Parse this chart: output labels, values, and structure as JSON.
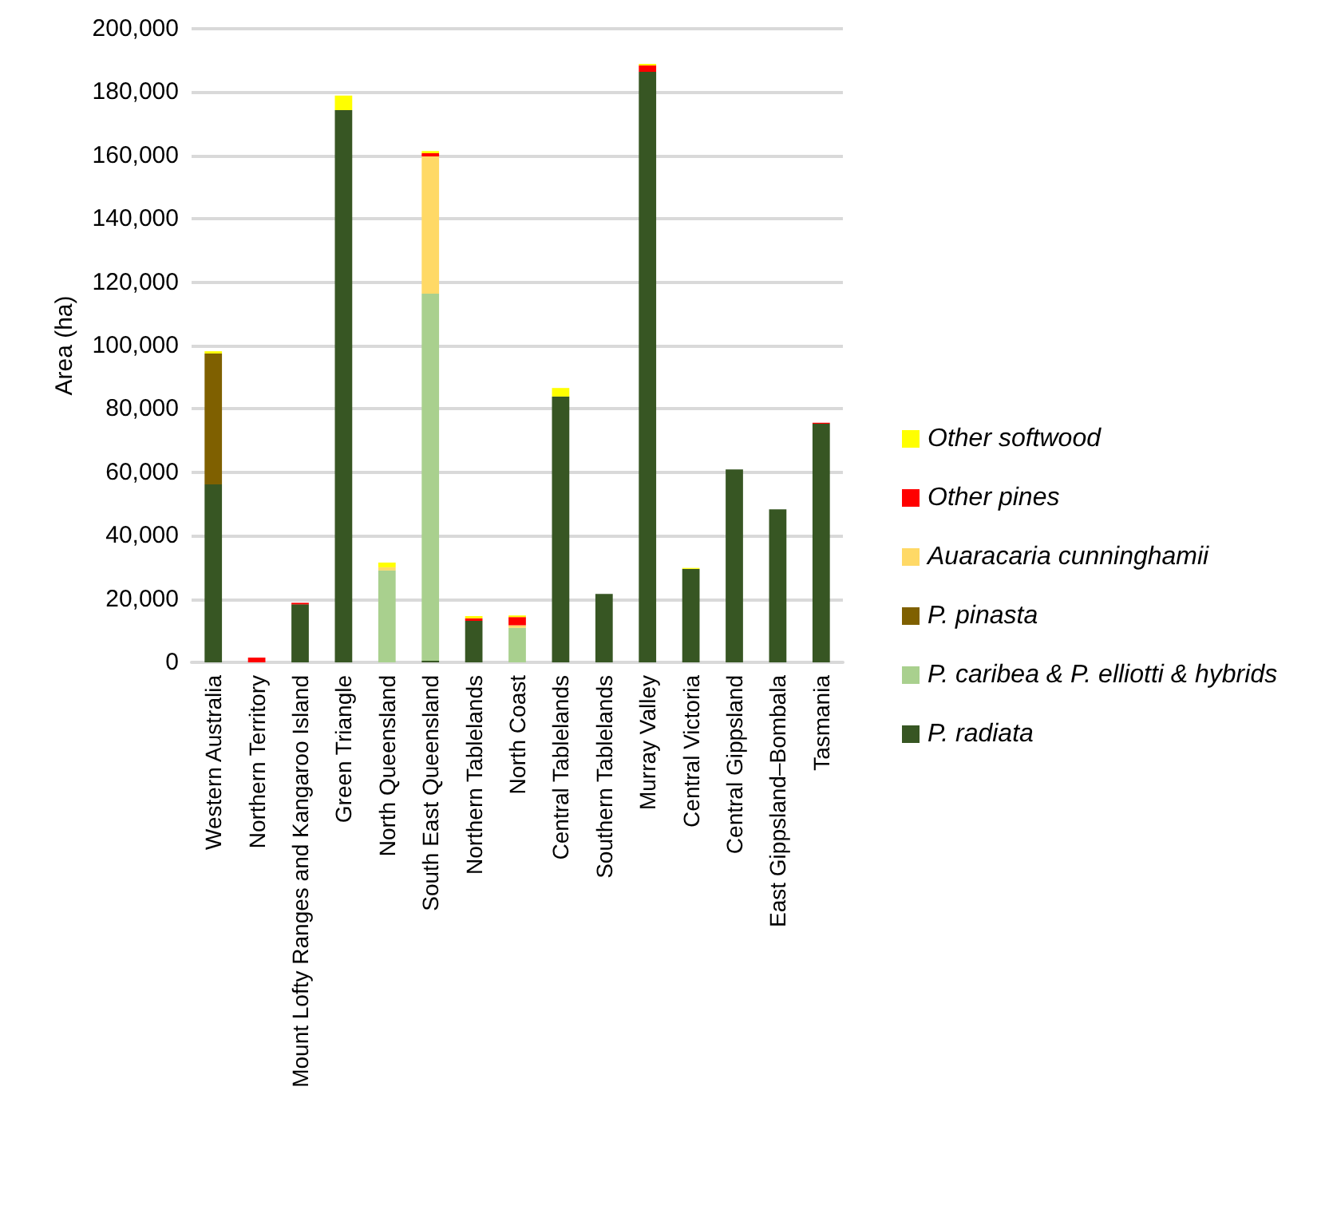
{
  "chart_data": {
    "type": "bar",
    "stacked": true,
    "ylabel": "Area (ha)",
    "categories": [
      "Western Australia",
      "Northern Territory",
      "Mount Lofty Ranges and Kangaroo Island",
      "Green Triangle",
      "North Queensland",
      "South East Queensland",
      "Northern Tablelands",
      "North Coast",
      "Central Tablelands",
      "Southern Tablelands",
      "Murray Valley",
      "Central Victoria",
      "Central Gippsland",
      "East Gippsland–Bombala",
      "Tasmania"
    ],
    "series": [
      {
        "name": "P. radiata",
        "color": "#375623",
        "values": [
          56200,
          0,
          18300,
          174300,
          0,
          500,
          13100,
          0,
          83900,
          21600,
          186400,
          29500,
          60900,
          48300,
          75300
        ]
      },
      {
        "name": "P. caribea & P. elliotti & hybrids",
        "color": "#a9d08e",
        "values": [
          0,
          0,
          0,
          0,
          29000,
          115900,
          0,
          10900,
          0,
          0,
          0,
          0,
          0,
          0,
          0
        ]
      },
      {
        "name": "P. pinasta",
        "color": "#7f6000",
        "values": [
          41300,
          0,
          0,
          0,
          0,
          0,
          0,
          0,
          0,
          0,
          0,
          0,
          0,
          0,
          0
        ]
      },
      {
        "name": "Auaracaria cunninghamii",
        "color": "#ffd966",
        "values": [
          0,
          0,
          0,
          0,
          1000,
          43300,
          0,
          800,
          0,
          0,
          0,
          0,
          0,
          0,
          0
        ]
      },
      {
        "name": "Other pines",
        "color": "#ff0000",
        "values": [
          0,
          1500,
          500,
          0,
          0,
          1000,
          800,
          2600,
          0,
          0,
          2000,
          0,
          0,
          0,
          300
        ]
      },
      {
        "name": "Other softwood",
        "color": "#ffff00",
        "values": [
          700,
          0,
          0,
          4600,
          1500,
          700,
          700,
          500,
          2700,
          0,
          500,
          300,
          0,
          0,
          0
        ]
      }
    ],
    "ylim": [
      0,
      200000
    ],
    "yticks": [
      0,
      {
        "value": 20000,
        "label": "20,000"
      },
      {
        "value": 40000,
        "label": "40,000"
      },
      {
        "value": 60000,
        "label": "60,000"
      },
      {
        "value": 80000,
        "label": "80,000"
      },
      {
        "value": 100000,
        "label": "100,000"
      },
      {
        "value": 120000,
        "label": "120,000"
      },
      {
        "value": 140000,
        "label": "140,000"
      },
      {
        "value": 160000,
        "label": "160,000"
      },
      {
        "value": 180000,
        "label": "180,000"
      },
      {
        "value": 200000,
        "label": "200,000"
      }
    ],
    "grid": "y",
    "legend": "right"
  }
}
